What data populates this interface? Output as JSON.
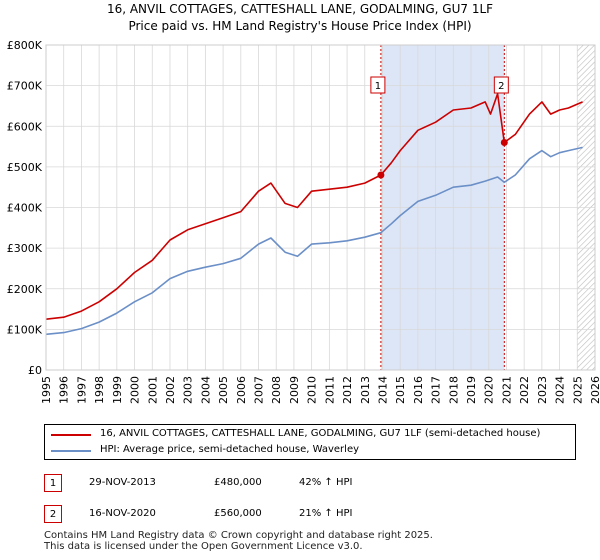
{
  "title_line1": "16, ANVIL COTTAGES, CATTESHALL LANE, GODALMING, GU7 1LF",
  "title_line2": "Price paid vs. HM Land Registry's House Price Index (HPI)",
  "chart_data": {
    "type": "line",
    "title": "Price paid vs. HM Land Registry's House Price Index (HPI)",
    "xlim": [
      1995,
      2026
    ],
    "ylim": [
      0,
      800000
    ],
    "xticks": [
      1995,
      1996,
      1997,
      1998,
      1999,
      2000,
      2001,
      2002,
      2003,
      2004,
      2005,
      2006,
      2007,
      2008,
      2009,
      2010,
      2011,
      2012,
      2013,
      2014,
      2015,
      2016,
      2017,
      2018,
      2019,
      2020,
      2021,
      2022,
      2023,
      2024,
      2025,
      2026
    ],
    "yticks": [
      0,
      100000,
      200000,
      300000,
      400000,
      500000,
      600000,
      700000,
      800000
    ],
    "ytick_labels": [
      "£0",
      "£100K",
      "£200K",
      "£300K",
      "£400K",
      "£500K",
      "£600K",
      "£700K",
      "£800K"
    ],
    "colors": {
      "red": "#cc0000",
      "blue": "#6b8fc7",
      "shade": "#dde6f7",
      "grid": "#d8d8d8"
    },
    "series": [
      {
        "name": "16, ANVIL COTTAGES, CATTESHALL LANE, GODALMING, GU7 1LF (semi-detached house)",
        "color": "#cc0000",
        "x": [
          1995,
          1996,
          1997,
          1998,
          1999,
          2000,
          2001,
          2002,
          2003,
          2004,
          2005,
          2006,
          2007,
          2007.7,
          2008.5,
          2009.2,
          2010,
          2011,
          2012,
          2013,
          2013.91,
          2014.5,
          2015,
          2016,
          2017,
          2018,
          2019,
          2019.8,
          2020.1,
          2020.5,
          2020.88,
          2021.5,
          2022.3,
          2023,
          2023.5,
          2024,
          2024.5,
          2025.3
        ],
        "values": [
          125000,
          130000,
          145000,
          168000,
          200000,
          240000,
          270000,
          320000,
          345000,
          360000,
          375000,
          390000,
          440000,
          460000,
          410000,
          400000,
          440000,
          445000,
          450000,
          460000,
          480000,
          510000,
          540000,
          590000,
          610000,
          640000,
          645000,
          660000,
          630000,
          680000,
          560000,
          580000,
          630000,
          660000,
          630000,
          640000,
          645000,
          660000
        ]
      },
      {
        "name": "HPI: Average price, semi-detached house, Waverley",
        "color": "#6b8fc7",
        "x": [
          1995,
          1996,
          1997,
          1998,
          1999,
          2000,
          2001,
          2002,
          2003,
          2004,
          2005,
          2006,
          2007,
          2007.7,
          2008.5,
          2009.2,
          2010,
          2011,
          2012,
          2013,
          2013.91,
          2014.5,
          2015,
          2016,
          2017,
          2018,
          2019,
          2019.8,
          2020.5,
          2020.88,
          2021.5,
          2022.3,
          2023,
          2023.5,
          2024,
          2024.5,
          2025.3
        ],
        "values": [
          88000,
          92000,
          102000,
          118000,
          140000,
          168000,
          190000,
          225000,
          243000,
          253000,
          262000,
          275000,
          310000,
          325000,
          290000,
          280000,
          310000,
          313000,
          318000,
          327000,
          338000,
          360000,
          380000,
          415000,
          430000,
          450000,
          455000,
          465000,
          475000,
          462000,
          480000,
          520000,
          540000,
          525000,
          535000,
          540000,
          548000
        ]
      }
    ],
    "transactions": [
      {
        "label": "1",
        "x": 2013.91,
        "value": 480000
      },
      {
        "label": "2",
        "x": 2020.88,
        "value": 560000
      }
    ],
    "shaded_range": [
      2013.91,
      2020.88
    ],
    "future_hatch_from": 2025.0
  },
  "legend": {
    "property": "16, ANVIL COTTAGES, CATTESHALL LANE, GODALMING, GU7 1LF (semi-detached house)",
    "hpi": "HPI: Average price, semi-detached house, Waverley"
  },
  "sales": [
    {
      "num": "1",
      "date": "29-NOV-2013",
      "price": "£480,000",
      "hpi": "42% ↑ HPI"
    },
    {
      "num": "2",
      "date": "16-NOV-2020",
      "price": "£560,000",
      "hpi": "21% ↑ HPI"
    }
  ],
  "footer": {
    "line1": "Contains HM Land Registry data © Crown copyright and database right 2025.",
    "line2": "This data is licensed under the Open Government Licence v3.0."
  }
}
